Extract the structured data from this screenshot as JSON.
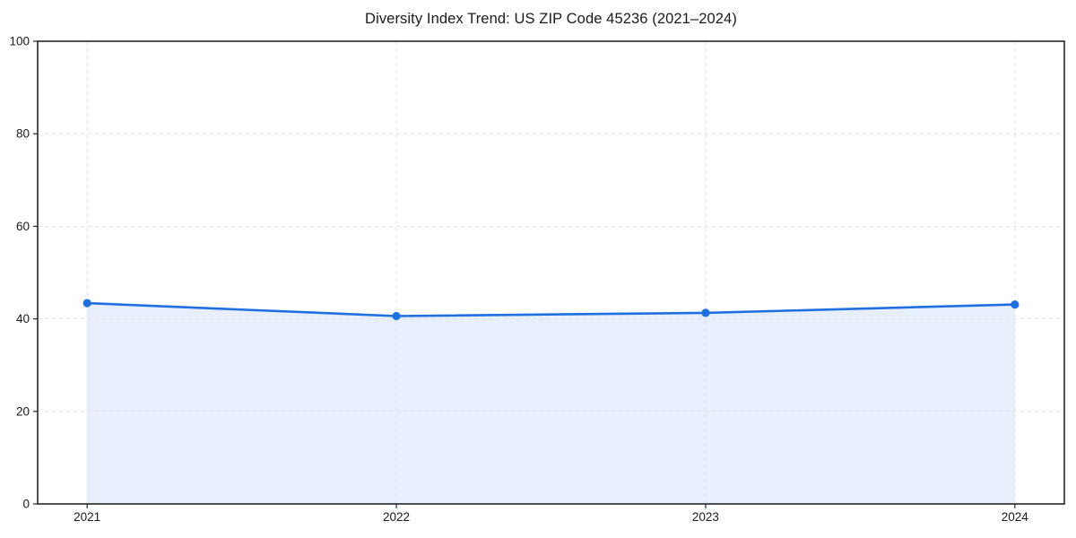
{
  "chart_data": {
    "type": "line",
    "title": "Diversity Index Trend: US ZIP Code 45236 (2021–2024)",
    "x": [
      2021,
      2022,
      2023,
      2024
    ],
    "x_tick_labels": [
      "2021",
      "2022",
      "2023",
      "2024"
    ],
    "y_ticks": [
      0,
      20,
      40,
      60,
      80,
      100
    ],
    "y_tick_labels": [
      "0",
      "20",
      "40",
      "60",
      "80",
      "100"
    ],
    "series": [
      {
        "name": "Diversity Index",
        "values": [
          43.4,
          40.6,
          41.3,
          43.1
        ]
      }
    ],
    "xlim": [
      2020.84,
      2024.16
    ],
    "ylim": [
      0,
      100
    ],
    "xlabel": "",
    "ylabel": "",
    "grid": "dashed-both-axes",
    "legend": "none",
    "marker": "circle",
    "area_fill_below_line": true,
    "colors": {
      "line": "#1f6fe0",
      "marker": "#1f6fe0",
      "area": "#e7effc",
      "grid": "#e1e1e1",
      "axis": "#262626",
      "text": "#1a1a1a",
      "background": "#ffffff"
    }
  }
}
